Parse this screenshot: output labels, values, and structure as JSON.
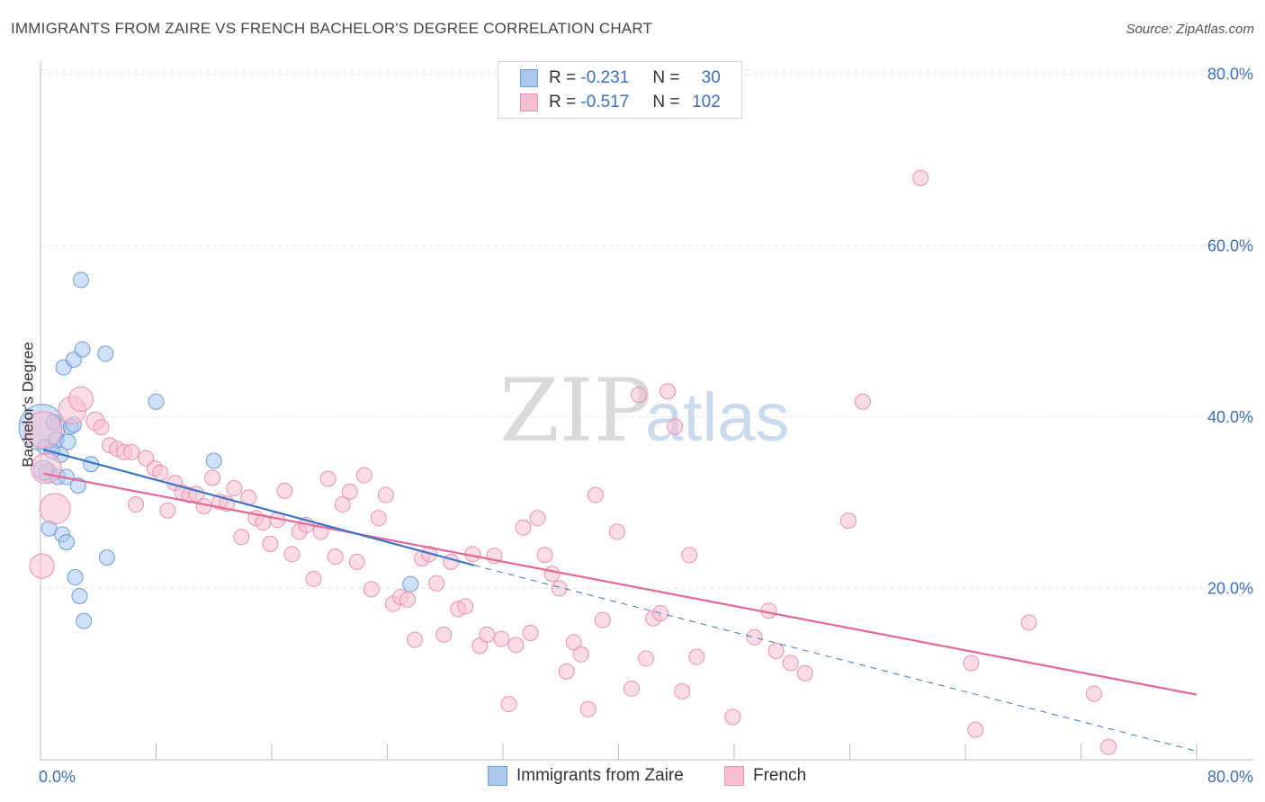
{
  "title": "IMMIGRANTS FROM ZAIRE VS FRENCH BACHELOR'S DEGREE CORRELATION CHART",
  "source": "Source: ZipAtlas.com",
  "watermark": {
    "part1": "ZIP",
    "part2": "atlas"
  },
  "legend": {
    "r_label": "R =",
    "n_label": "N =",
    "series": [
      {
        "name": "Immigrants from Zaire",
        "r": "-0.231",
        "n": "30"
      },
      {
        "name": "French",
        "r": "-0.517",
        "n": "102"
      }
    ]
  },
  "colors": {
    "blue_fill": "#aac7ee",
    "blue_stroke": "#6f9bd6",
    "blue_line": "#3a74c9",
    "pink_fill": "#f6bfd0",
    "pink_stroke": "#ec8fb0",
    "pink_line": "#e5679a",
    "axis_text": "#3c6fc0",
    "grid": "#e2e2e2"
  },
  "chart_data": {
    "type": "scatter",
    "title": "IMMIGRANTS FROM ZAIRE VS FRENCH BACHELOR'S DEGREE CORRELATION CHART",
    "xlabel": "",
    "ylabel": "Bachelor's Degree",
    "xlim": [
      0,
      80
    ],
    "ylim": [
      0,
      82
    ],
    "x_tick_labels": [
      {
        "value": 0,
        "label": "0.0%"
      },
      {
        "value": 80,
        "label": "80.0%"
      }
    ],
    "y_tick_labels": [
      {
        "value": 80,
        "label": "80.0%"
      },
      {
        "value": 60,
        "label": "60.0%"
      },
      {
        "value": 40,
        "label": "40.0%"
      },
      {
        "value": 20,
        "label": "20.0%"
      }
    ],
    "grid": true,
    "series": [
      {
        "name": "Immigrants from Zaire",
        "color": "blue",
        "trend": {
          "x0": 0.2,
          "y0": 36.2,
          "x1": 30.0,
          "y1": 22.7,
          "dash_to_x": 80,
          "dash_to_y": 1.0
        },
        "points": [
          {
            "x": 0.1,
            "y": 38.8,
            "s": 3
          },
          {
            "x": 0.3,
            "y": 36.5,
            "s": 1
          },
          {
            "x": 0.5,
            "y": 33.5,
            "s": 1.2
          },
          {
            "x": 0.6,
            "y": 27.0,
            "s": 1
          },
          {
            "x": 0.9,
            "y": 39.4,
            "s": 1
          },
          {
            "x": 1.1,
            "y": 37.4,
            "s": 1
          },
          {
            "x": 1.2,
            "y": 33.0,
            "s": 1
          },
          {
            "x": 1.4,
            "y": 35.6,
            "s": 1
          },
          {
            "x": 1.5,
            "y": 26.3,
            "s": 1
          },
          {
            "x": 1.6,
            "y": 45.8,
            "s": 1
          },
          {
            "x": 1.8,
            "y": 33.0,
            "s": 1
          },
          {
            "x": 1.8,
            "y": 25.4,
            "s": 1
          },
          {
            "x": 1.9,
            "y": 37.1,
            "s": 1
          },
          {
            "x": 2.1,
            "y": 38.9,
            "s": 1
          },
          {
            "x": 2.3,
            "y": 39.1,
            "s": 1
          },
          {
            "x": 2.3,
            "y": 46.7,
            "s": 1
          },
          {
            "x": 2.4,
            "y": 21.3,
            "s": 1
          },
          {
            "x": 2.6,
            "y": 32.0,
            "s": 1
          },
          {
            "x": 2.7,
            "y": 19.1,
            "s": 1
          },
          {
            "x": 2.8,
            "y": 56.0,
            "s": 1
          },
          {
            "x": 2.9,
            "y": 47.9,
            "s": 1
          },
          {
            "x": 3.0,
            "y": 16.2,
            "s": 1
          },
          {
            "x": 3.5,
            "y": 34.5,
            "s": 1
          },
          {
            "x": 4.5,
            "y": 47.4,
            "s": 1
          },
          {
            "x": 4.6,
            "y": 23.6,
            "s": 1
          },
          {
            "x": 8.0,
            "y": 41.8,
            "s": 1
          },
          {
            "x": 12.0,
            "y": 34.9,
            "s": 1
          },
          {
            "x": 25.6,
            "y": 20.5,
            "s": 1
          },
          {
            "x": 0.2,
            "y": 33.8,
            "s": 1.3
          },
          {
            "x": 0.8,
            "y": 36.0,
            "s": 1
          }
        ]
      },
      {
        "name": "French",
        "color": "pink",
        "trend": {
          "x0": 0.2,
          "y0": 33.4,
          "x1": 80,
          "y1": 7.6
        },
        "points": [
          {
            "x": 0.1,
            "y": 22.6,
            "s": 1.6
          },
          {
            "x": 0.2,
            "y": 38.5,
            "s": 2.4
          },
          {
            "x": 0.4,
            "y": 34.0,
            "s": 2
          },
          {
            "x": 1.0,
            "y": 29.3,
            "s": 2
          },
          {
            "x": 2.2,
            "y": 40.8,
            "s": 1.8
          },
          {
            "x": 2.8,
            "y": 42.1,
            "s": 1.6
          },
          {
            "x": 3.8,
            "y": 39.5,
            "s": 1.2
          },
          {
            "x": 4.2,
            "y": 38.8,
            "s": 1
          },
          {
            "x": 4.8,
            "y": 36.7,
            "s": 1
          },
          {
            "x": 5.3,
            "y": 36.3,
            "s": 1
          },
          {
            "x": 5.8,
            "y": 35.9,
            "s": 1
          },
          {
            "x": 6.3,
            "y": 35.9,
            "s": 1
          },
          {
            "x": 6.6,
            "y": 29.8,
            "s": 1
          },
          {
            "x": 7.3,
            "y": 35.2,
            "s": 1
          },
          {
            "x": 7.9,
            "y": 34.0,
            "s": 1
          },
          {
            "x": 8.3,
            "y": 33.5,
            "s": 1
          },
          {
            "x": 8.8,
            "y": 29.1,
            "s": 1
          },
          {
            "x": 9.3,
            "y": 32.3,
            "s": 1
          },
          {
            "x": 9.8,
            "y": 31.2,
            "s": 1
          },
          {
            "x": 10.3,
            "y": 30.9,
            "s": 1
          },
          {
            "x": 10.8,
            "y": 31.0,
            "s": 1
          },
          {
            "x": 11.3,
            "y": 29.6,
            "s": 1
          },
          {
            "x": 11.9,
            "y": 32.9,
            "s": 1
          },
          {
            "x": 12.4,
            "y": 30.1,
            "s": 1
          },
          {
            "x": 12.9,
            "y": 29.9,
            "s": 1
          },
          {
            "x": 13.4,
            "y": 31.7,
            "s": 1
          },
          {
            "x": 13.9,
            "y": 26.0,
            "s": 1
          },
          {
            "x": 14.4,
            "y": 30.6,
            "s": 1
          },
          {
            "x": 14.9,
            "y": 28.2,
            "s": 1
          },
          {
            "x": 15.4,
            "y": 27.7,
            "s": 1
          },
          {
            "x": 15.9,
            "y": 25.2,
            "s": 1
          },
          {
            "x": 16.4,
            "y": 28.0,
            "s": 1
          },
          {
            "x": 16.9,
            "y": 31.4,
            "s": 1
          },
          {
            "x": 17.4,
            "y": 24.0,
            "s": 1
          },
          {
            "x": 17.9,
            "y": 26.6,
            "s": 1
          },
          {
            "x": 18.4,
            "y": 27.4,
            "s": 1
          },
          {
            "x": 18.9,
            "y": 21.1,
            "s": 1
          },
          {
            "x": 19.4,
            "y": 26.6,
            "s": 1
          },
          {
            "x": 19.9,
            "y": 32.8,
            "s": 1
          },
          {
            "x": 20.4,
            "y": 23.7,
            "s": 1
          },
          {
            "x": 20.9,
            "y": 29.8,
            "s": 1
          },
          {
            "x": 21.4,
            "y": 31.3,
            "s": 1
          },
          {
            "x": 21.9,
            "y": 23.1,
            "s": 1
          },
          {
            "x": 22.4,
            "y": 33.2,
            "s": 1
          },
          {
            "x": 22.9,
            "y": 19.9,
            "s": 1
          },
          {
            "x": 23.4,
            "y": 28.2,
            "s": 1
          },
          {
            "x": 23.9,
            "y": 30.9,
            "s": 1
          },
          {
            "x": 24.4,
            "y": 18.2,
            "s": 1
          },
          {
            "x": 24.9,
            "y": 19.0,
            "s": 1
          },
          {
            "x": 25.4,
            "y": 18.7,
            "s": 1
          },
          {
            "x": 25.9,
            "y": 14.0,
            "s": 1
          },
          {
            "x": 26.4,
            "y": 23.5,
            "s": 1
          },
          {
            "x": 26.9,
            "y": 24.0,
            "s": 1
          },
          {
            "x": 27.4,
            "y": 20.6,
            "s": 1
          },
          {
            "x": 27.9,
            "y": 14.6,
            "s": 1
          },
          {
            "x": 28.4,
            "y": 23.1,
            "s": 1
          },
          {
            "x": 28.9,
            "y": 17.6,
            "s": 1
          },
          {
            "x": 29.4,
            "y": 17.9,
            "s": 1
          },
          {
            "x": 29.9,
            "y": 24.0,
            "s": 1
          },
          {
            "x": 30.4,
            "y": 13.3,
            "s": 1
          },
          {
            "x": 30.9,
            "y": 14.6,
            "s": 1
          },
          {
            "x": 31.4,
            "y": 23.8,
            "s": 1
          },
          {
            "x": 31.9,
            "y": 14.1,
            "s": 1
          },
          {
            "x": 32.4,
            "y": 6.5,
            "s": 1
          },
          {
            "x": 32.9,
            "y": 13.4,
            "s": 1
          },
          {
            "x": 33.4,
            "y": 27.1,
            "s": 1
          },
          {
            "x": 33.9,
            "y": 14.8,
            "s": 1
          },
          {
            "x": 34.4,
            "y": 28.2,
            "s": 1
          },
          {
            "x": 34.9,
            "y": 23.9,
            "s": 1
          },
          {
            "x": 35.4,
            "y": 21.7,
            "s": 1
          },
          {
            "x": 35.9,
            "y": 20.0,
            "s": 1
          },
          {
            "x": 36.4,
            "y": 10.3,
            "s": 1
          },
          {
            "x": 36.9,
            "y": 13.7,
            "s": 1
          },
          {
            "x": 37.4,
            "y": 12.3,
            "s": 1
          },
          {
            "x": 37.9,
            "y": 5.9,
            "s": 1
          },
          {
            "x": 38.4,
            "y": 30.9,
            "s": 1
          },
          {
            "x": 38.9,
            "y": 16.3,
            "s": 1
          },
          {
            "x": 39.9,
            "y": 26.6,
            "s": 1
          },
          {
            "x": 40.9,
            "y": 8.3,
            "s": 1
          },
          {
            "x": 41.4,
            "y": 42.6,
            "s": 1
          },
          {
            "x": 41.9,
            "y": 11.8,
            "s": 1
          },
          {
            "x": 42.4,
            "y": 16.5,
            "s": 1
          },
          {
            "x": 42.9,
            "y": 17.1,
            "s": 1
          },
          {
            "x": 43.4,
            "y": 43.0,
            "s": 1
          },
          {
            "x": 43.9,
            "y": 38.9,
            "s": 1
          },
          {
            "x": 44.4,
            "y": 8.0,
            "s": 1
          },
          {
            "x": 44.9,
            "y": 23.9,
            "s": 1
          },
          {
            "x": 45.4,
            "y": 12.0,
            "s": 1
          },
          {
            "x": 47.9,
            "y": 5.0,
            "s": 1
          },
          {
            "x": 49.4,
            "y": 14.3,
            "s": 1
          },
          {
            "x": 50.4,
            "y": 17.4,
            "s": 1
          },
          {
            "x": 50.9,
            "y": 12.7,
            "s": 1
          },
          {
            "x": 51.9,
            "y": 11.3,
            "s": 1
          },
          {
            "x": 52.9,
            "y": 10.1,
            "s": 1
          },
          {
            "x": 55.9,
            "y": 27.9,
            "s": 1
          },
          {
            "x": 56.9,
            "y": 41.8,
            "s": 1
          },
          {
            "x": 60.9,
            "y": 67.9,
            "s": 1
          },
          {
            "x": 64.4,
            "y": 11.3,
            "s": 1
          },
          {
            "x": 64.7,
            "y": 3.5,
            "s": 1
          },
          {
            "x": 68.4,
            "y": 16.0,
            "s": 1
          },
          {
            "x": 72.9,
            "y": 7.7,
            "s": 1
          },
          {
            "x": 73.9,
            "y": 1.5,
            "s": 1
          }
        ]
      }
    ]
  }
}
